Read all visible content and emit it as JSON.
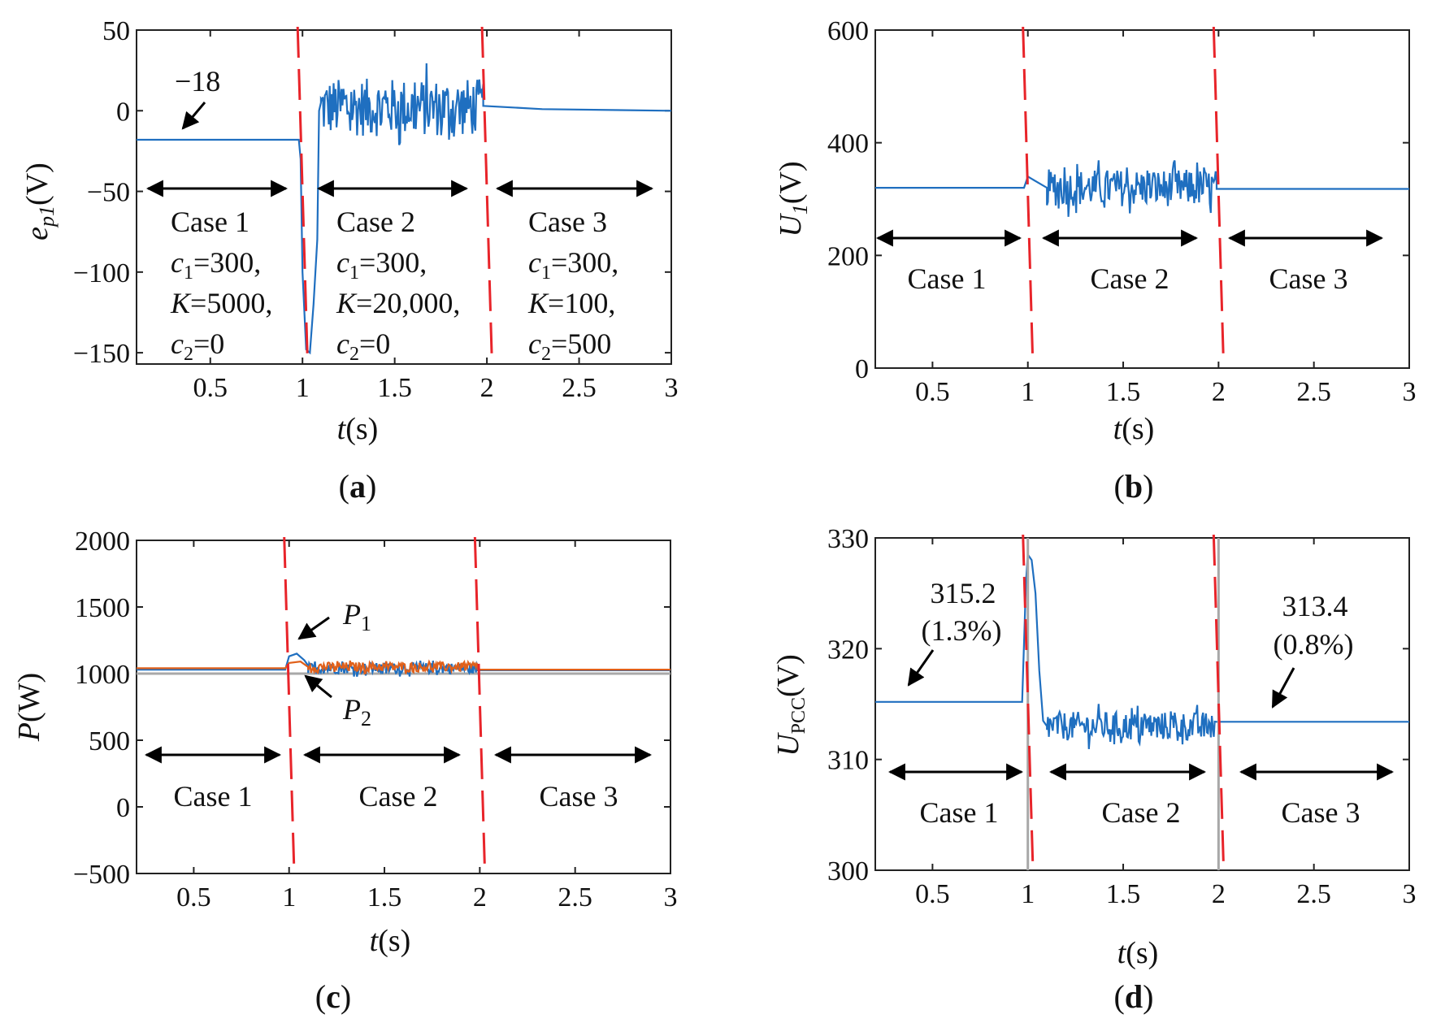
{
  "chart_data": [
    {
      "id": "a",
      "type": "line",
      "caption": "a",
      "xlabel": "t(s)",
      "ylabel": "e_p1(V)",
      "xlim": [
        0.1,
        3
      ],
      "ylim": [
        -157,
        50
      ],
      "xticks": [
        0.5,
        1,
        1.5,
        2,
        2.5,
        3
      ],
      "xtick_labels": [
        "0.5",
        "1",
        "1.5",
        "2",
        "2.5",
        "3"
      ],
      "yticks": [
        50,
        0,
        -50,
        -100,
        -150
      ],
      "ytick_labels": [
        "50",
        "0",
        "−50",
        "−100",
        "−150"
      ],
      "dividers": [
        1,
        2
      ],
      "series": [
        {
          "name": "e_p1",
          "color": "#1f6fc0",
          "segments": [
            {
              "kind": "line",
              "points": [
                [
                  0.1,
                  -18
                ],
                [
                  0.98,
                  -18
                ],
                [
                  0.99,
                  -30
                ],
                [
                  1.0,
                  -100
                ],
                [
                  1.02,
                  -148
                ],
                [
                  1.04,
                  -150
                ],
                [
                  1.06,
                  -120
                ],
                [
                  1.08,
                  -80
                ],
                [
                  1.09,
                  0
                ],
                [
                  1.1,
                  5
                ]
              ]
            },
            {
              "kind": "noise",
              "x0": 1.1,
              "x1": 1.98,
              "center": 2,
              "amp": 18
            },
            {
              "kind": "line",
              "points": [
                [
                  1.98,
                  3
                ],
                [
                  2.3,
                  1
                ],
                [
                  3,
                  0
                ]
              ]
            }
          ]
        }
      ],
      "annotations": [
        {
          "text": "−18"
        }
      ],
      "cases": [
        {
          "case": "Case 1",
          "c1": "300",
          "K": "5000",
          "c2": "0"
        },
        {
          "case": "Case 2",
          "c1": "300",
          "K": "20,000",
          "c2": "0"
        },
        {
          "case": "Case 3",
          "c1": "300",
          "K": "100",
          "c2": "500"
        }
      ]
    },
    {
      "id": "b",
      "type": "line",
      "caption": "b",
      "xlabel": "t(s)",
      "ylabel": "U1(V)",
      "xlim": [
        0.2,
        3
      ],
      "ylim": [
        0,
        600
      ],
      "xticks": [
        0.5,
        1,
        1.5,
        2,
        2.5,
        3
      ],
      "xtick_labels": [
        "0.5",
        "1",
        "1.5",
        "2",
        "2.5",
        "3"
      ],
      "yticks": [
        600,
        400,
        200,
        0
      ],
      "ytick_labels": [
        "600",
        "400",
        "200",
        "0"
      ],
      "dividers": [
        1,
        2
      ],
      "series": [
        {
          "name": "U1",
          "color": "#1f6fc0",
          "segments": [
            {
              "kind": "line",
              "points": [
                [
                  0.2,
                  320
                ],
                [
                  0.98,
                  320
                ],
                [
                  1.0,
                  340
                ],
                [
                  1.05,
                  330
                ],
                [
                  1.1,
                  320
                ]
              ]
            },
            {
              "kind": "noise",
              "x0": 1.1,
              "x1": 1.99,
              "center": 320,
              "amp": 33
            },
            {
              "kind": "line",
              "points": [
                [
                  1.99,
                  318
                ],
                [
                  3,
                  318
                ]
              ]
            }
          ]
        }
      ],
      "cases": [
        {
          "case": "Case 1"
        },
        {
          "case": "Case 2"
        },
        {
          "case": "Case 3"
        }
      ]
    },
    {
      "id": "c",
      "type": "line",
      "caption": "c",
      "xlabel": "t(s)",
      "ylabel": "P(W)",
      "xlim": [
        0.2,
        3
      ],
      "ylim": [
        -500,
        2000
      ],
      "xticks": [
        0.5,
        1,
        1.5,
        2,
        2.5,
        3
      ],
      "xtick_labels": [
        "0.5",
        "1",
        "1.5",
        "2",
        "2.5",
        "3"
      ],
      "yticks": [
        2000,
        1500,
        1000,
        500,
        0,
        -500
      ],
      "ytick_labels": [
        "2000",
        "1500",
        "1000",
        "500",
        "0",
        "−500"
      ],
      "dividers": [
        1,
        2
      ],
      "series": [
        {
          "name": "reference",
          "color": "#a8a8a8",
          "segments": [
            {
              "kind": "line",
              "points": [
                [
                  0.2,
                  1000
                ],
                [
                  3,
                  1000
                ]
              ]
            }
          ]
        },
        {
          "name": "P1",
          "color": "#1f6fc0",
          "segments": [
            {
              "kind": "line",
              "points": [
                [
                  0.2,
                  1030
                ],
                [
                  0.98,
                  1030
                ],
                [
                  1.0,
                  1130
                ],
                [
                  1.04,
                  1150
                ],
                [
                  1.08,
                  1100
                ],
                [
                  1.1,
                  1060
                ]
              ]
            },
            {
              "kind": "noise",
              "x0": 1.1,
              "x1": 1.99,
              "center": 1040,
              "amp": 40
            },
            {
              "kind": "line",
              "points": [
                [
                  1.99,
                  1025
                ],
                [
                  3,
                  1025
                ]
              ]
            }
          ]
        },
        {
          "name": "P2",
          "color": "#e0601a",
          "segments": [
            {
              "kind": "line",
              "points": [
                [
                  0.2,
                  1040
                ],
                [
                  0.98,
                  1040
                ],
                [
                  1.0,
                  1080
                ],
                [
                  1.06,
                  1090
                ],
                [
                  1.1,
                  1050
                ]
              ]
            },
            {
              "kind": "noise",
              "x0": 1.1,
              "x1": 1.99,
              "center": 1050,
              "amp": 35
            },
            {
              "kind": "line",
              "points": [
                [
                  1.99,
                  1030
                ],
                [
                  3,
                  1030
                ]
              ]
            }
          ]
        }
      ],
      "annotations": [
        {
          "text": "P",
          "sub": "1"
        },
        {
          "text": "P",
          "sub": "2"
        }
      ],
      "cases": [
        {
          "case": "Case 1"
        },
        {
          "case": "Case 2"
        },
        {
          "case": "Case 3"
        }
      ]
    },
    {
      "id": "d",
      "type": "line",
      "caption": "d",
      "xlabel": "t(s)",
      "ylabel": "UPCC(V)",
      "xlim": [
        0.2,
        3
      ],
      "ylim": [
        300,
        330
      ],
      "xticks": [
        0.5,
        1,
        1.5,
        2,
        2.5,
        3
      ],
      "xtick_labels": [
        "0.5",
        "1",
        "1.5",
        "2",
        "2.5",
        "3"
      ],
      "yticks": [
        330,
        320,
        310,
        300
      ],
      "ytick_labels": [
        "330",
        "320",
        "310",
        "300"
      ],
      "dividers": [
        1,
        2
      ],
      "series": [
        {
          "name": "UPCC",
          "color": "#1f6fc0",
          "segments": [
            {
              "kind": "line",
              "points": [
                [
                  0.2,
                  315.2
                ],
                [
                  0.97,
                  315.2
                ],
                [
                  0.99,
                  326
                ],
                [
                  1.0,
                  328.5
                ],
                [
                  1.02,
                  328
                ],
                [
                  1.04,
                  325
                ],
                [
                  1.06,
                  318
                ],
                [
                  1.08,
                  313.5
                ],
                [
                  1.1,
                  313
                ]
              ]
            },
            {
              "kind": "noise",
              "x0": 1.1,
              "x1": 1.98,
              "center": 313,
              "amp": 1.3
            },
            {
              "kind": "line",
              "points": [
                [
                  1.98,
                  313.4
                ],
                [
                  3,
                  313.4
                ]
              ]
            }
          ]
        }
      ],
      "annotations": [
        {
          "text": "315.2",
          "sub_text": "(1.3%)"
        },
        {
          "text": "313.4",
          "sub_text": "(0.8%)"
        }
      ],
      "cases": [
        {
          "case": "Case 1"
        },
        {
          "case": "Case 2"
        },
        {
          "case": "Case 3"
        }
      ]
    }
  ],
  "colors": {
    "signal": "#1f6fc0",
    "signal2": "#e0601a",
    "divider": "#e8242a",
    "reference": "#a8a8a8",
    "arrow": "#000000"
  }
}
